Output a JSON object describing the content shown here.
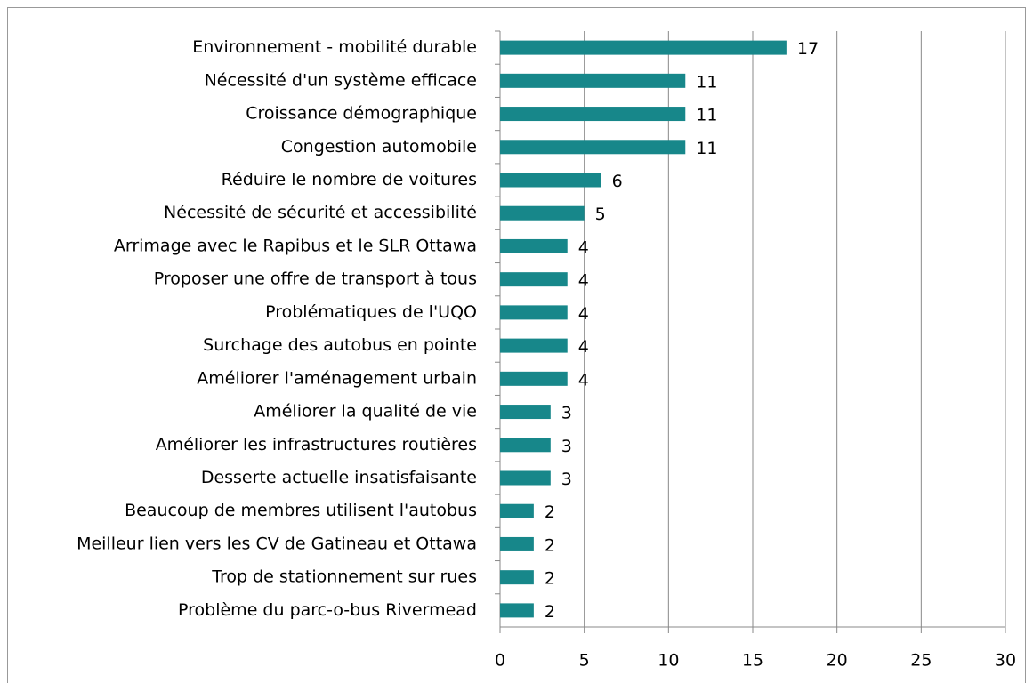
{
  "chart_data": {
    "type": "bar",
    "orientation": "horizontal",
    "categories": [
      "Environnement - mobilité durable",
      "Nécessité d'un système efficace",
      "Croissance démographique",
      "Congestion automobile",
      "Réduire le nombre de voitures",
      "Nécessité de sécurité et accessibilité",
      "Arrimage avec le Rapibus et le SLR Ottawa",
      "Proposer une offre de transport à tous",
      "Problématiques de l'UQO",
      "Surchage des autobus en pointe",
      "Améliorer l'aménagement urbain",
      "Améliorer la qualité de vie",
      "Améliorer les infrastructures routières",
      "Desserte actuelle insatisfaisante",
      "Beaucoup de membres utilisent l'autobus",
      "Meilleur lien vers les CV de Gatineau et Ottawa",
      "Trop de stationnement sur rues",
      "Problème du parc-o-bus Rivermead"
    ],
    "values": [
      17,
      11,
      11,
      11,
      6,
      5,
      4,
      4,
      4,
      4,
      4,
      3,
      3,
      3,
      2,
      2,
      2,
      2
    ],
    "color": "#17878a",
    "xlim": [
      0,
      30
    ],
    "xticks": [
      0,
      5,
      10,
      15,
      20,
      25,
      30
    ],
    "grid": true
  }
}
